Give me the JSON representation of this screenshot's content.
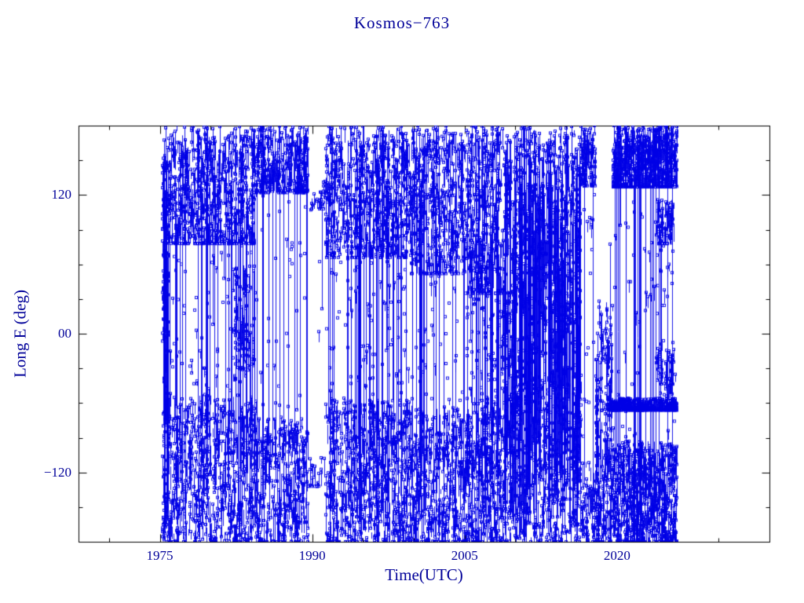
{
  "page": {
    "background": "#ffffff"
  },
  "chart_data": {
    "type": "scatter",
    "title": "Kosmos−763",
    "xlabel": "Time(UTC)",
    "ylabel": "Long E (deg)",
    "xlim": [
      1967,
      2035
    ],
    "ylim": [
      -180,
      180
    ],
    "x_ticks": [
      {
        "value": 1975,
        "label": "1975"
      },
      {
        "value": 1990,
        "label": "1990"
      },
      {
        "value": 2005,
        "label": "2005"
      },
      {
        "value": 2020,
        "label": "2020"
      }
    ],
    "y_ticks": [
      {
        "value": 120,
        "label": "120"
      },
      {
        "value": 0,
        "label": "00"
      },
      {
        "value": -120,
        "label": "−120"
      }
    ],
    "x_minor_step": 5,
    "y_minor_step": 30,
    "grid": false,
    "legend": null,
    "marker": "open-square",
    "marker_size": 3,
    "line_color": "#0000e6",
    "text_color": "#000099",
    "axis_color": "#000000",
    "series_description": "Sub-satellite longitude (deg E) of Kosmos-763 versus time, 1975-2026; dense vertical-line scatter of open square markers wrapping between +180 and -180 deg",
    "segments": [
      {
        "t0": 1975.25,
        "t1": 1975.85,
        "lines": 70,
        "mid_scatter": 0,
        "bands": [
          [
            -180,
            180,
            0.9
          ]
        ]
      },
      {
        "t0": 1975.85,
        "t1": 1984.5,
        "lines": 5,
        "mid_scatter": 0.07,
        "bands": [
          [
            78,
            180,
            0.6
          ],
          [
            -180,
            -52,
            0.6
          ]
        ]
      },
      {
        "t0": 1982.2,
        "t1": 1984.3,
        "lines": 9,
        "mid_scatter": 0,
        "bands": [
          [
            -40,
            60,
            0.12
          ]
        ]
      },
      {
        "t0": 1984.5,
        "t1": 1989.6,
        "lines": 3.5,
        "mid_scatter": 0.05,
        "bands": [
          [
            122,
            180,
            0.5
          ],
          [
            -180,
            -72,
            0.55
          ]
        ]
      },
      {
        "t0": 1989.6,
        "t1": 1991.3,
        "lines": 0.8,
        "mid_scatter": 0.02,
        "bands": [
          [
            108,
            132,
            0.1
          ],
          [
            -132,
            -102,
            0.1
          ]
        ]
      },
      {
        "t0": 1991.3,
        "t1": 1999.6,
        "lines": 6,
        "mid_scatter": 0.09,
        "bands": [
          [
            66,
            180,
            0.65
          ],
          [
            -180,
            -55,
            0.62
          ]
        ]
      },
      {
        "t0": 1999.6,
        "t1": 2005.2,
        "lines": 5,
        "mid_scatter": 0.05,
        "bands": [
          [
            52,
            180,
            0.65
          ],
          [
            -180,
            -62,
            0.6
          ]
        ]
      },
      {
        "t0": 2005.2,
        "t1": 2008.6,
        "lines": 9,
        "mid_scatter": 0.15,
        "bands": [
          [
            35,
            180,
            0.8
          ],
          [
            -180,
            -55,
            0.75
          ]
        ]
      },
      {
        "t0": 2008.6,
        "t1": 2016.4,
        "lines": 40,
        "mid_scatter": 0,
        "bands": [
          [
            -180,
            180,
            0.95
          ]
        ]
      },
      {
        "t0": 2016.4,
        "t1": 2017.9,
        "lines": 1.5,
        "mid_scatter": 0.12,
        "bands": [
          [
            128,
            180,
            0.55
          ],
          [
            -180,
            -108,
            0.35
          ]
        ]
      },
      {
        "t0": 2017.9,
        "t1": 2019.6,
        "lines": 5,
        "mid_scatter": 0.15,
        "bands": [
          [
            -58,
            30,
            0.3
          ],
          [
            -180,
            -68,
            0.75
          ]
        ]
      },
      {
        "t0": 2019.6,
        "t1": 2025.9,
        "lines": 4,
        "mid_scatter": 0.07,
        "bands": [
          [
            127,
            180,
            0.9
          ],
          [
            -180,
            -93,
            0.9
          ]
        ]
      },
      {
        "t0": 2023.9,
        "t1": 2025.6,
        "lines": 2,
        "mid_scatter": 0.05,
        "bands": [
          [
            78,
            116,
            0.35
          ],
          [
            -58,
            -8,
            0.3
          ]
        ]
      },
      {
        "t0": 2019.2,
        "t1": 2025.9,
        "lines": 0,
        "mid_scatter": 0,
        "bands": [
          [
            -66,
            -56,
            0.6
          ]
        ]
      }
    ]
  }
}
